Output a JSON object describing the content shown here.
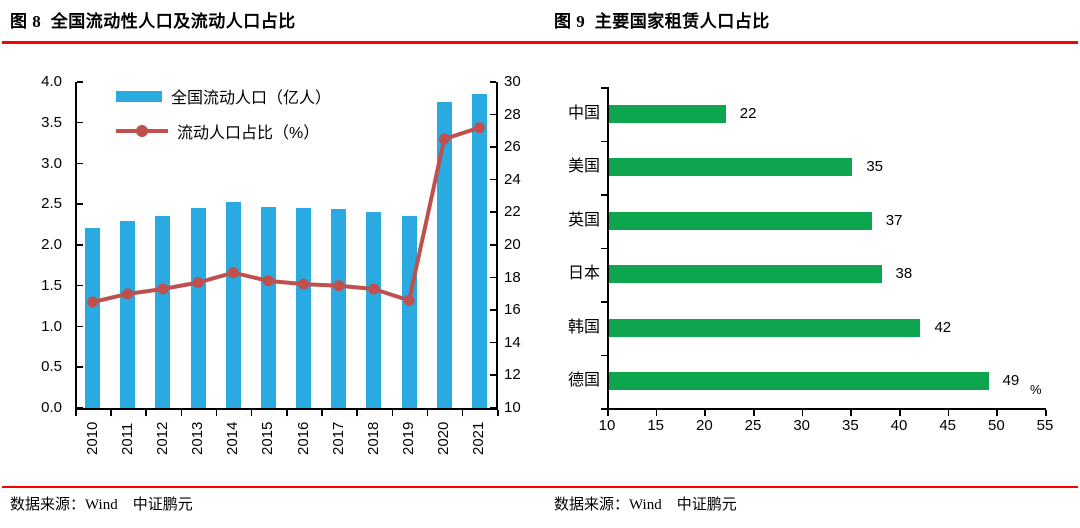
{
  "page": {
    "background": "#ffffff",
    "rule_color": "#fe0000"
  },
  "figure8": {
    "title": "图 8  全国流动性人口及流动人口占比",
    "source": "数据来源：Wind　中证鹏元"
  },
  "figure9": {
    "title": "图 9  主要国家租赁人口占比",
    "source": "数据来源：Wind　中证鹏元"
  },
  "chart_data": [
    {
      "id": "national-floating-population",
      "type": "bar+line",
      "categories": [
        "2010",
        "2011",
        "2012",
        "2013",
        "2014",
        "2015",
        "2016",
        "2017",
        "2018",
        "2019",
        "2020",
        "2021"
      ],
      "series": [
        {
          "name": "全国流动人口（亿人）",
          "type": "bar",
          "axis": "left",
          "color": "#29abe2",
          "values": [
            2.21,
            2.3,
            2.36,
            2.45,
            2.53,
            2.47,
            2.45,
            2.44,
            2.41,
            2.36,
            3.76,
            3.85
          ]
        },
        {
          "name": "流动人口占比（%）",
          "type": "line",
          "axis": "right",
          "color": "#c0504d",
          "values": [
            16.5,
            17.0,
            17.3,
            17.7,
            18.3,
            17.8,
            17.6,
            17.5,
            17.3,
            16.6,
            26.5,
            27.2
          ]
        }
      ],
      "left_axis": {
        "min": 0,
        "max": 4,
        "ticks": [
          "0.0",
          "0.5",
          "1.0",
          "1.5",
          "2.0",
          "2.5",
          "3.0",
          "3.5",
          "4.0"
        ]
      },
      "right_axis": {
        "min": 10,
        "max": 30,
        "ticks": [
          "10",
          "12",
          "14",
          "16",
          "18",
          "20",
          "22",
          "24",
          "26",
          "28",
          "30"
        ]
      },
      "legend_position": "top-left-inside",
      "grid": false
    },
    {
      "id": "rental-population-share-by-country",
      "type": "bar-horizontal",
      "categories": [
        "中国",
        "美国",
        "英国",
        "日本",
        "韩国",
        "德国"
      ],
      "values": [
        22,
        35,
        37,
        38,
        42,
        49
      ],
      "data_labels": [
        "22",
        "35",
        "37",
        "38",
        "42",
        "49"
      ],
      "color": "#0da64e",
      "x_axis": {
        "min": 10,
        "max": 55,
        "ticks": [
          "10",
          "15",
          "20",
          "25",
          "30",
          "35",
          "40",
          "45",
          "50",
          "55"
        ],
        "unit": "%"
      },
      "grid": false
    }
  ]
}
